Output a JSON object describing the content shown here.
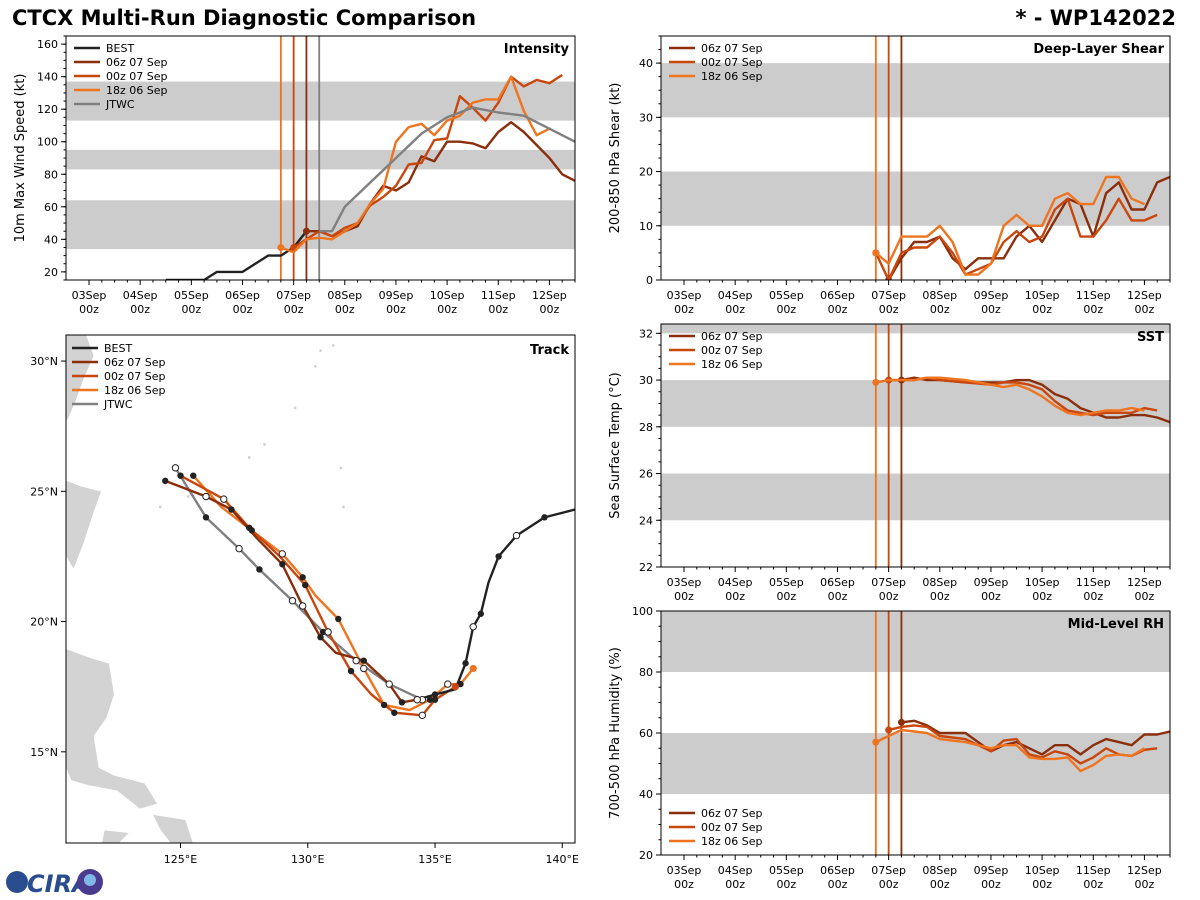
{
  "header": {
    "title": "CTCX Multi-Run Diagnostic Comparison",
    "storm_id": "* - WP142022"
  },
  "logo_text": "CIRA",
  "colors": {
    "best": "#222222",
    "jtwc": "#808080",
    "run_06z": "#8B2E0B",
    "run_00z": "#C9460C",
    "run_18z": "#EE7420",
    "band": "#cccccc",
    "land": "#d3d3d3"
  },
  "time_axis": {
    "ticks": [
      "03Sep\n00z",
      "04Sep\n00z",
      "05Sep\n00z",
      "06Sep\n00z",
      "07Sep\n00z",
      "08Sep\n00z",
      "09Sep\n00z",
      "10Sep\n00z",
      "11Sep\n00z",
      "12Sep\n00z"
    ],
    "range_days": [
      2.55,
      12.5
    ],
    "init_times_days": {
      "run_18z": 6.75,
      "run_00z": 7.0,
      "run_06z": 7.25,
      "jtwc": 7.5
    }
  },
  "chart_data": [
    {
      "id": "intensity",
      "type": "line",
      "title": "Intensity",
      "ylabel": "10m Max Wind Speed (kt)",
      "ylim": [
        15,
        165
      ],
      "yticks": [
        20,
        40,
        60,
        80,
        100,
        120,
        140,
        160
      ],
      "bands": [
        [
          34,
          64
        ],
        [
          83,
          95
        ],
        [
          113,
          137
        ]
      ],
      "legend": [
        "BEST",
        "06z 07 Sep",
        "00z 07 Sep",
        "18z 06 Sep",
        "JTWC"
      ],
      "series": [
        {
          "name": "BEST",
          "key": "best",
          "x": [
            4.5,
            4.75,
            5.0,
            5.25,
            5.5,
            5.75,
            6.0,
            6.25,
            6.5,
            6.75,
            7.0,
            7.25
          ],
          "y": [
            15,
            15,
            15,
            15,
            20,
            20,
            20,
            25,
            30,
            30,
            35,
            45
          ]
        },
        {
          "name": "06z 07 Sep",
          "key": "run_06z",
          "x": [
            7.25,
            7.5,
            7.75,
            8.0,
            8.25,
            8.5,
            8.75,
            9.0,
            9.25,
            9.5,
            9.75,
            10.0,
            10.25,
            10.5,
            10.75,
            11.0,
            11.25,
            11.5,
            11.75,
            12.0,
            12.25,
            12.5
          ],
          "y": [
            45,
            45,
            42,
            45,
            48,
            62,
            73,
            70,
            75,
            91,
            88,
            100,
            100,
            99,
            96,
            106,
            112,
            106,
            98,
            90,
            80,
            76
          ]
        },
        {
          "name": "00z 07 Sep",
          "key": "run_00z",
          "x": [
            7.0,
            7.25,
            7.5,
            7.75,
            8.0,
            8.25,
            8.5,
            8.75,
            9.0,
            9.25,
            9.5,
            9.75,
            10.0,
            10.25,
            10.5,
            10.75,
            11.0,
            11.25,
            11.5,
            11.75,
            12.0,
            12.25
          ],
          "y": [
            35,
            40,
            45,
            42,
            47,
            50,
            61,
            66,
            73,
            86,
            87,
            101,
            102,
            128,
            121,
            113,
            124,
            140,
            134,
            138,
            136,
            141
          ]
        },
        {
          "name": "18z 06 Sep",
          "key": "run_18z",
          "x": [
            6.75,
            7.0,
            7.25,
            7.5,
            7.75,
            8.0,
            8.25,
            8.5,
            8.75,
            9.0,
            9.25,
            9.5,
            9.75,
            10.0,
            10.25,
            10.5,
            10.75,
            11.0,
            11.25,
            11.5,
            11.75,
            12.0
          ],
          "y": [
            35,
            32,
            40,
            41,
            40,
            45,
            50,
            62,
            71,
            100,
            109,
            111,
            104,
            113,
            116,
            124,
            126,
            126,
            140,
            119,
            104,
            108
          ]
        },
        {
          "name": "JTWC",
          "key": "jtwc",
          "x": [
            7.5,
            7.75,
            8.0,
            8.5,
            9.0,
            9.5,
            10.0,
            10.5,
            11.0,
            11.5,
            12.0,
            12.5
          ],
          "y": [
            45,
            45,
            60,
            75,
            90,
            105,
            115,
            121,
            118,
            116,
            108,
            100
          ]
        }
      ]
    },
    {
      "id": "shear",
      "type": "line",
      "title": "Deep-Layer Shear",
      "ylabel": "200-850 hPa Shear (kt)",
      "ylim": [
        0,
        45
      ],
      "yticks": [
        0,
        10,
        20,
        30,
        40
      ],
      "bands": [
        [
          10,
          20
        ],
        [
          30,
          40
        ]
      ],
      "legend": [
        "06z 07 Sep",
        "00z 07 Sep",
        "18z 06 Sep"
      ],
      "series": [
        {
          "name": "06z 07 Sep",
          "key": "run_06z",
          "x": [
            7.0,
            7.25,
            7.5,
            7.75,
            8.0,
            8.25,
            8.5,
            8.75,
            9.0,
            9.25,
            9.5,
            9.75,
            10.0,
            10.25,
            10.5,
            10.75,
            11.0,
            11.25,
            11.5,
            11.75,
            12.0,
            12.25,
            12.5
          ],
          "y": [
            0,
            4,
            7,
            7,
            8,
            4,
            2,
            4,
            4,
            4,
            8,
            10,
            7,
            11,
            15,
            14,
            8,
            16,
            18,
            13,
            13,
            18,
            19
          ]
        },
        {
          "name": "00z 07 Sep",
          "key": "run_00z",
          "x": [
            6.75,
            7.0,
            7.25,
            7.5,
            7.75,
            8.0,
            8.25,
            8.5,
            8.75,
            9.0,
            9.25,
            9.5,
            9.75,
            10.0,
            10.25,
            10.5,
            10.75,
            11.0,
            11.25,
            11.5,
            11.75,
            12.0,
            12.25
          ],
          "y": [
            5,
            0,
            5,
            6,
            6,
            8,
            5,
            1,
            2,
            3,
            7,
            9,
            7,
            8,
            13,
            15,
            8,
            8,
            11,
            15,
            11,
            11,
            12
          ]
        },
        {
          "name": "18z 06 Sep",
          "key": "run_18z",
          "x": [
            6.75,
            7.0,
            7.25,
            7.5,
            7.75,
            8.0,
            8.25,
            8.5,
            8.75,
            9.0,
            9.25,
            9.5,
            9.75,
            10.0,
            10.25,
            10.5,
            10.75,
            11.0,
            11.25,
            11.5,
            11.75,
            12.0
          ],
          "y": [
            5,
            3,
            8,
            8,
            8,
            10,
            7,
            1,
            1,
            3,
            10,
            12,
            10,
            10,
            15,
            16,
            14,
            14,
            19,
            19,
            15,
            14
          ]
        }
      ]
    },
    {
      "id": "track",
      "type": "scatter",
      "title": "Track",
      "xlim": [
        120.5,
        140.5
      ],
      "ylim": [
        11.5,
        31
      ],
      "xticks": [
        125,
        130,
        135,
        140
      ],
      "xtick_labels": [
        "125°E",
        "130°E",
        "135°E",
        "140°E"
      ],
      "yticks": [
        15,
        20,
        25,
        30
      ],
      "ytick_labels": [
        "15°N",
        "20°N",
        "25°N",
        "30°N"
      ],
      "legend": [
        "BEST",
        "06z 07 Sep",
        "00z 07 Sep",
        "18z 06 Sep",
        "JTWC"
      ],
      "series": [
        {
          "name": "BEST",
          "key": "best",
          "lon": [
            140.5,
            139.3,
            138.2,
            137.5,
            137.1,
            136.8,
            136.5,
            136.2,
            135.8,
            135.0,
            134.3
          ],
          "lat": [
            24.3,
            24.0,
            23.3,
            22.5,
            21.5,
            20.3,
            19.8,
            18.4,
            17.4,
            17.2,
            17.0
          ]
        },
        {
          "name": "06z 07 Sep",
          "key": "run_06z",
          "lon": [
            134.3,
            133.7,
            133.2,
            132.2,
            131.1,
            130.5,
            129.8,
            129.0,
            128.0,
            127.0,
            126.0,
            124.4
          ],
          "lat": [
            17.0,
            16.9,
            17.6,
            18.5,
            18.8,
            19.4,
            20.6,
            22.2,
            23.2,
            24.3,
            24.8,
            25.4
          ]
        },
        {
          "name": "00z 07 Sep",
          "key": "run_00z",
          "lon": [
            135.8,
            135.0,
            134.5,
            133.4,
            132.5,
            131.7,
            130.8,
            129.9,
            128.9,
            127.7,
            126.7,
            125.0
          ],
          "lat": [
            17.5,
            17.0,
            16.4,
            16.5,
            17.2,
            18.1,
            19.6,
            21.4,
            22.5,
            23.6,
            24.7,
            25.6
          ]
        },
        {
          "name": "18z 06 Sep",
          "key": "run_18z",
          "lon": [
            136.5,
            136.0,
            135.5,
            134.8,
            134.0,
            133.0,
            132.2,
            131.2,
            130.3,
            129.8,
            129.0,
            127.8,
            126.6,
            125.5
          ],
          "lat": [
            18.2,
            17.6,
            17.6,
            17.0,
            16.6,
            16.8,
            18.2,
            20.1,
            21.0,
            21.7,
            22.6,
            23.5,
            24.4,
            25.6
          ]
        },
        {
          "name": "JTWC",
          "key": "jtwc",
          "lon": [
            134.5,
            133.2,
            131.9,
            130.6,
            129.4,
            128.1,
            127.3,
            126.0,
            124.8
          ],
          "lat": [
            17.0,
            17.6,
            18.5,
            19.6,
            20.8,
            22.0,
            22.8,
            24.0,
            25.9
          ]
        }
      ]
    },
    {
      "id": "sst",
      "type": "line",
      "title": "SST",
      "ylabel": "Sea Surface Temp (°C)",
      "ylim": [
        22,
        32.4
      ],
      "yticks": [
        22,
        24,
        26,
        28,
        30,
        32
      ],
      "bands": [
        [
          24,
          26
        ],
        [
          28,
          30
        ],
        [
          32,
          34
        ]
      ],
      "legend": [
        "06z 07 Sep",
        "00z 07 Sep",
        "18z 06 Sep"
      ],
      "series": [
        {
          "name": "06z 07 Sep",
          "key": "run_06z",
          "x": [
            7.25,
            7.5,
            7.75,
            8.0,
            8.5,
            9.0,
            9.25,
            9.5,
            9.75,
            10.0,
            10.25,
            10.5,
            10.75,
            11.0,
            11.25,
            11.5,
            11.75,
            12.0,
            12.25,
            12.5
          ],
          "y": [
            30.0,
            30.1,
            30.0,
            30.0,
            29.9,
            29.9,
            29.9,
            30.0,
            30.0,
            29.8,
            29.4,
            29.2,
            28.8,
            28.6,
            28.4,
            28.4,
            28.5,
            28.5,
            28.4,
            28.2
          ]
        },
        {
          "name": "00z 07 Sep",
          "key": "run_00z",
          "x": [
            7.0,
            7.25,
            7.5,
            7.75,
            8.0,
            8.5,
            9.0,
            9.25,
            9.5,
            9.75,
            10.0,
            10.25,
            10.5,
            10.75,
            11.0,
            11.25,
            11.5,
            11.75,
            12.0,
            12.25
          ],
          "y": [
            30.0,
            30.0,
            30.0,
            30.1,
            30.0,
            29.9,
            29.8,
            29.9,
            29.9,
            29.8,
            29.6,
            29.1,
            28.7,
            28.6,
            28.5,
            28.6,
            28.6,
            28.6,
            28.8,
            28.7
          ]
        },
        {
          "name": "18z 06 Sep",
          "key": "run_18z",
          "x": [
            6.75,
            7.0,
            7.25,
            7.5,
            7.75,
            8.0,
            8.5,
            9.0,
            9.25,
            9.5,
            9.75,
            10.0,
            10.25,
            10.5,
            10.75,
            11.0,
            11.25,
            11.5,
            11.75,
            12.0
          ],
          "y": [
            29.9,
            30.0,
            30.0,
            30.0,
            30.1,
            30.1,
            30.0,
            29.8,
            29.7,
            29.8,
            29.6,
            29.3,
            28.9,
            28.6,
            28.5,
            28.6,
            28.7,
            28.7,
            28.8,
            28.7
          ]
        }
      ]
    },
    {
      "id": "rh",
      "type": "line",
      "title": "Mid-Level RH",
      "ylabel": "700-500 hPa Humidity (%)",
      "ylim": [
        20,
        100
      ],
      "yticks": [
        20,
        40,
        60,
        80,
        100
      ],
      "bands": [
        [
          40,
          60
        ],
        [
          80,
          100
        ]
      ],
      "legend": [
        "06z 07 Sep",
        "00z 07 Sep",
        "18z 06 Sep"
      ],
      "series": [
        {
          "name": "06z 07 Sep",
          "key": "run_06z",
          "x": [
            7.25,
            7.5,
            7.75,
            8.0,
            8.5,
            9.0,
            9.25,
            9.5,
            9.75,
            10.0,
            10.25,
            10.5,
            10.75,
            11.0,
            11.25,
            11.5,
            11.75,
            12.0,
            12.25,
            12.5
          ],
          "y": [
            63.5,
            64,
            62.5,
            60,
            60,
            54,
            56,
            57,
            55,
            53,
            56,
            56,
            53,
            56,
            58,
            57,
            56,
            59.5,
            59.5,
            60.5
          ]
        },
        {
          "name": "00z 07 Sep",
          "key": "run_00z",
          "x": [
            7.0,
            7.25,
            7.5,
            7.75,
            8.0,
            8.5,
            9.0,
            9.25,
            9.5,
            9.75,
            10.0,
            10.25,
            10.5,
            10.75,
            11.0,
            11.25,
            11.5,
            11.75,
            12.0,
            12.25
          ],
          "y": [
            61,
            62,
            62.5,
            62,
            59,
            58,
            54,
            57.5,
            58,
            53,
            52,
            54,
            53,
            50,
            52,
            55,
            53,
            52.5,
            54.5,
            55
          ]
        },
        {
          "name": "18z 06 Sep",
          "key": "run_18z",
          "x": [
            6.75,
            7.0,
            7.25,
            7.5,
            7.75,
            8.0,
            8.5,
            9.0,
            9.25,
            9.5,
            9.75,
            10.0,
            10.25,
            10.5,
            10.75,
            11.0,
            11.25,
            11.5,
            11.75,
            12.0
          ],
          "y": [
            57,
            59,
            61,
            60.5,
            60,
            58,
            57,
            55,
            56,
            56,
            52,
            51.5,
            51.5,
            52,
            47.5,
            49.5,
            52.5,
            53,
            52.5,
            55
          ]
        }
      ]
    }
  ]
}
